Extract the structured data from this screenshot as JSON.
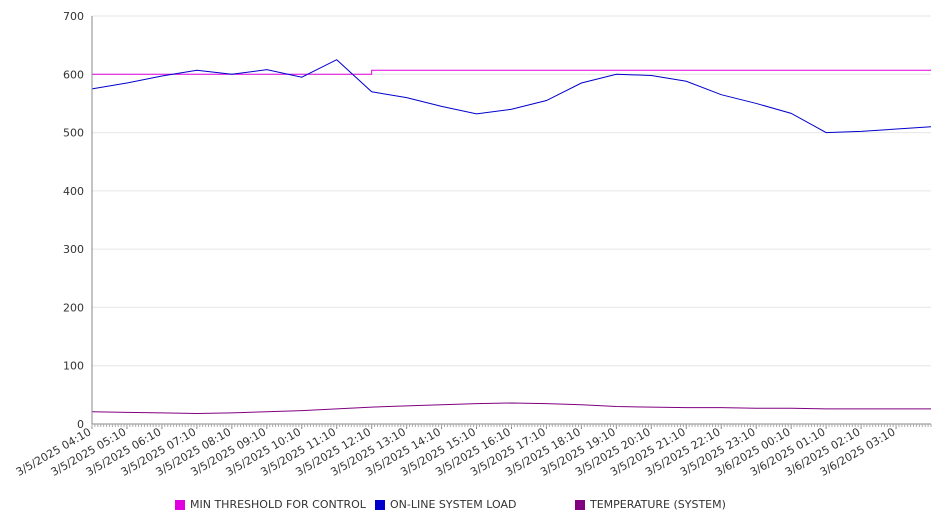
{
  "chart_data": {
    "type": "line",
    "title": "",
    "xlabel": "",
    "ylabel": "",
    "ylim": [
      0,
      700
    ],
    "yticks": [
      0,
      100,
      200,
      300,
      400,
      500,
      600,
      700
    ],
    "grid": true,
    "legend_position": "bottom",
    "categories": [
      "3/5/2025 04:10",
      "3/5/2025 05:10",
      "3/5/2025 06:10",
      "3/5/2025 07:10",
      "3/5/2025 08:10",
      "3/5/2025 09:10",
      "3/5/2025 10:10",
      "3/5/2025 11:10",
      "3/5/2025 12:10",
      "3/5/2025 13:10",
      "3/5/2025 14:10",
      "3/5/2025 15:10",
      "3/5/2025 16:10",
      "3/5/2025 17:10",
      "3/5/2025 18:10",
      "3/5/2025 19:10",
      "3/5/2025 20:10",
      "3/5/2025 21:10",
      "3/5/2025 22:10",
      "3/5/2025 23:10",
      "3/6/2025 00:10",
      "3/6/2025 01:10",
      "3/6/2025 02:10",
      "3/6/2025 03:10"
    ],
    "series": [
      {
        "name": "MIN THRESHOLD FOR CONTROL",
        "color": "#e000e0",
        "values": [
          600,
          600,
          600,
          600,
          600,
          600,
          600,
          600,
          607,
          607,
          607,
          607,
          607,
          607,
          607,
          607,
          607,
          607,
          607,
          607,
          607,
          607,
          607,
          607
        ]
      },
      {
        "name": "ON-LINE SYSTEM LOAD",
        "color": "#0000cc",
        "values": [
          575,
          585,
          597,
          607,
          600,
          608,
          595,
          625,
          570,
          560,
          545,
          532,
          540,
          555,
          585,
          600,
          598,
          588,
          565,
          550,
          533,
          500,
          502,
          510
        ]
      },
      {
        "name": "TEMPERATURE (SYSTEM)",
        "color": "#800080",
        "values": [
          21,
          20,
          19,
          18,
          19,
          21,
          23,
          26,
          29,
          31,
          33,
          35,
          36,
          35,
          33,
          30,
          29,
          28,
          28,
          27,
          27,
          26,
          26,
          26
        ]
      }
    ]
  }
}
